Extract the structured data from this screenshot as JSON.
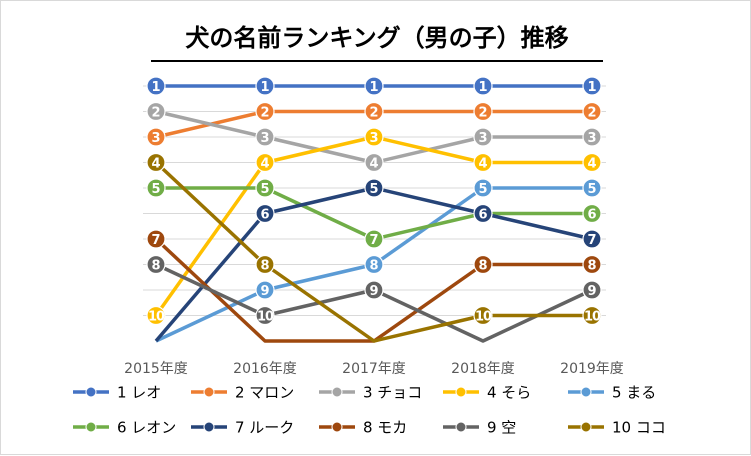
{
  "chart_data": {
    "type": "line",
    "title": "犬の名前ランキング（男の子）推移",
    "categories": [
      "2015年度",
      "2016年度",
      "2017年度",
      "2018年度",
      "2019年度"
    ],
    "ylim": [
      1,
      10
    ],
    "y_reversed": true,
    "grid": true,
    "legend_position": "bottom",
    "series": [
      {
        "name": "1 レオ",
        "color": "#4472c4",
        "values": [
          1,
          1,
          1,
          1,
          1
        ]
      },
      {
        "name": "2 マロン",
        "color": "#ed7d31",
        "values": [
          3,
          2,
          2,
          2,
          2
        ]
      },
      {
        "name": "3 チョコ",
        "color": "#a5a5a5",
        "values": [
          2,
          3,
          4,
          3,
          3
        ]
      },
      {
        "name": "4 そら",
        "color": "#ffc000",
        "values": [
          10,
          4,
          3,
          4,
          4
        ]
      },
      {
        "name": "5 まる",
        "color": "#5b9bd5",
        "values": [
          11,
          9,
          8,
          5,
          5
        ]
      },
      {
        "name": "6 レオン",
        "color": "#70ad47",
        "values": [
          5,
          5,
          7,
          6,
          6
        ]
      },
      {
        "name": "7 ルーク",
        "color": "#264478",
        "values": [
          11,
          6,
          5,
          6,
          7
        ]
      },
      {
        "name": "8 モカ",
        "color": "#9e480e",
        "values": [
          7,
          11,
          11,
          8,
          8
        ]
      },
      {
        "name": "9 空",
        "color": "#636363",
        "values": [
          8,
          10,
          9,
          11,
          9
        ]
      },
      {
        "name": "10 ココ",
        "color": "#997300",
        "values": [
          4,
          8,
          11,
          10,
          10
        ]
      }
    ]
  }
}
